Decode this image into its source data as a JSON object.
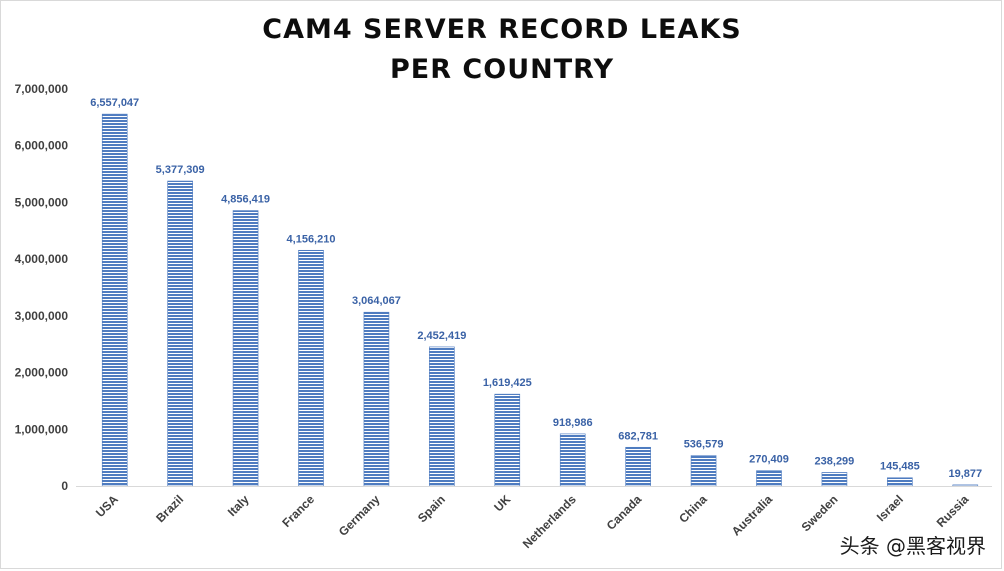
{
  "chart_data": {
    "type": "bar",
    "title": [
      "CAM4 SERVER RECORD LEAKS",
      "PER COUNTRY"
    ],
    "categories": [
      "USA",
      "Brazil",
      "Italy",
      "France",
      "Germany",
      "Spain",
      "UK",
      "Netherlands",
      "Canada",
      "China",
      "Australia",
      "Sweden",
      "Israel",
      "Russia"
    ],
    "values": [
      6557047,
      5377309,
      4856419,
      4156210,
      3064067,
      2452419,
      1619425,
      918986,
      682781,
      536579,
      270409,
      238299,
      145485,
      19877
    ],
    "value_labels": [
      "6,557,047",
      "5,377,309",
      "4,856,419",
      "4,156,210",
      "3,064,067",
      "2,452,419",
      "1,619,425",
      "918,986",
      "682,781",
      "536,579",
      "270,409",
      "238,299",
      "145,485",
      "19,877"
    ],
    "yticks": [
      0,
      1000000,
      2000000,
      3000000,
      4000000,
      5000000,
      6000000,
      7000000
    ],
    "ytick_labels": [
      "0",
      "1,000,000",
      "2,000,000",
      "3,000,000",
      "4,000,000",
      "5,000,000",
      "6,000,000",
      "7,000,000"
    ],
    "ylim": [
      0,
      7000000
    ],
    "xlabel": "",
    "ylabel": "",
    "grid": false,
    "bar_color": "#4f7cc0",
    "bar_fill": "horizontal-stripes",
    "label_color": "#3a62a6"
  },
  "watermark": "头条 @黑客视界"
}
